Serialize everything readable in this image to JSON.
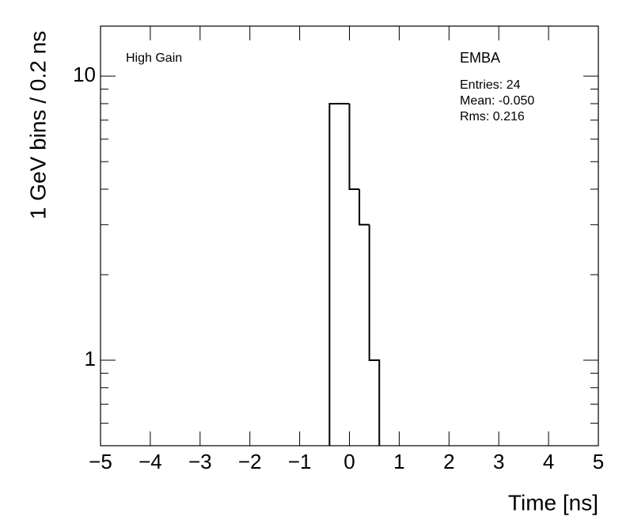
{
  "chart_data": {
    "type": "histogram",
    "xlabel": "Time [ns]",
    "ylabel": "1 GeV bins / 0.2 ns",
    "annotations": [
      "High Gain",
      "EMBA",
      "Entries: 24",
      "Mean: -0.050",
      "Rms: 0.216"
    ],
    "bins": [
      -0.4,
      -0.2,
      0,
      0.2,
      0.4,
      0.6
    ],
    "values": [
      8,
      8,
      4,
      3,
      1
    ],
    "color": "#000000",
    "xlim": [
      -5,
      5
    ],
    "xticks": [
      {
        "value": -5,
        "label": "−5"
      },
      {
        "value": -4,
        "label": "−4"
      },
      {
        "value": -3,
        "label": "−3"
      },
      {
        "value": -2,
        "label": "−2"
      },
      {
        "value": -1,
        "label": "−1"
      },
      0,
      1,
      2,
      3,
      4,
      5
    ],
    "ylim": [
      0.5,
      15
    ],
    "yscale": "log",
    "yticks": [
      1,
      10
    ],
    "yminorticks": [
      0.6,
      0.7,
      0.8,
      0.9,
      2,
      3,
      4,
      5,
      6,
      7,
      8,
      9
    ]
  }
}
